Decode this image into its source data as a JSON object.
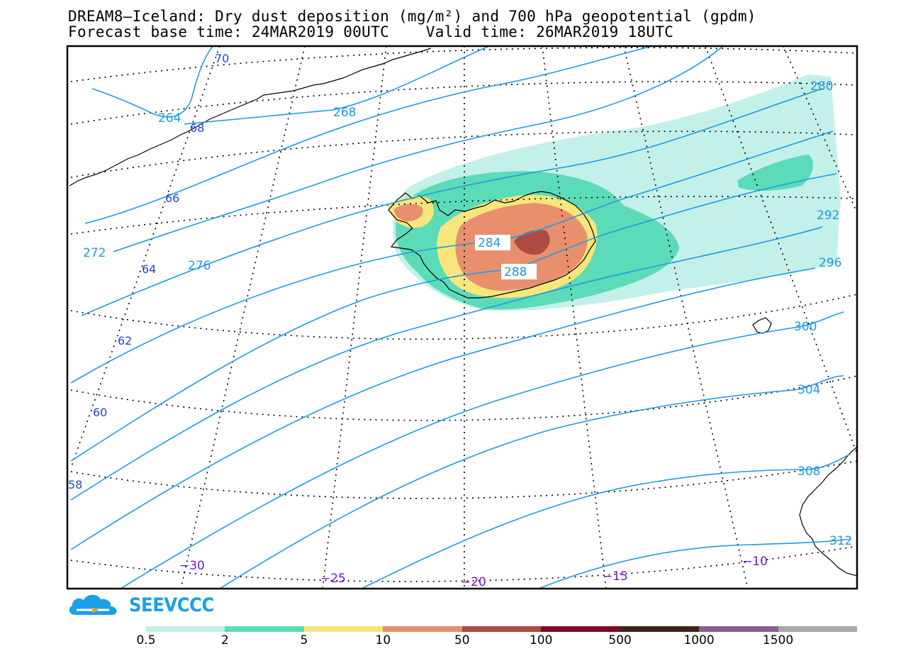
{
  "header": {
    "title_line1": "DREAM8–Iceland: Dry dust deposition (mg/m²) and 700 hPa geopotential (gpdm)",
    "title_line2": "Forecast base time: 24MAR2019 00UTC    Valid time: 26MAR2019 18UTC"
  },
  "logo": {
    "text": "SEEVCCC",
    "icon": "cloud-logo-icon",
    "color": "#1aa0e6"
  },
  "contours": {
    "color": "#1e9be0",
    "labels": [
      "264",
      "268",
      "272",
      "276",
      "280",
      "284",
      "288",
      "292",
      "296",
      "300",
      "304",
      "308",
      "312"
    ]
  },
  "latitude_labels": {
    "color": "#2346d8",
    "values": [
      "70",
      "68",
      "66",
      "64",
      "62",
      "60",
      "58"
    ]
  },
  "longitude_labels": {
    "color": "#7a18c8",
    "values": [
      "−30",
      "−25",
      "−20",
      "−15",
      "−10"
    ]
  },
  "colorbar": {
    "bins": [
      {
        "color": "#c4f0ea"
      },
      {
        "color": "#5cdbb8"
      },
      {
        "color": "#f6e67c"
      },
      {
        "color": "#e8906e"
      },
      {
        "color": "#ae4a42"
      },
      {
        "color": "#7c0a28"
      },
      {
        "color": "#3e2418"
      },
      {
        "color": "#8e5e92"
      },
      {
        "color": "#a8a8a8"
      }
    ],
    "labels": [
      "0.5",
      "2",
      "5",
      "10",
      "50",
      "100",
      "500",
      "1000",
      "1500"
    ]
  }
}
